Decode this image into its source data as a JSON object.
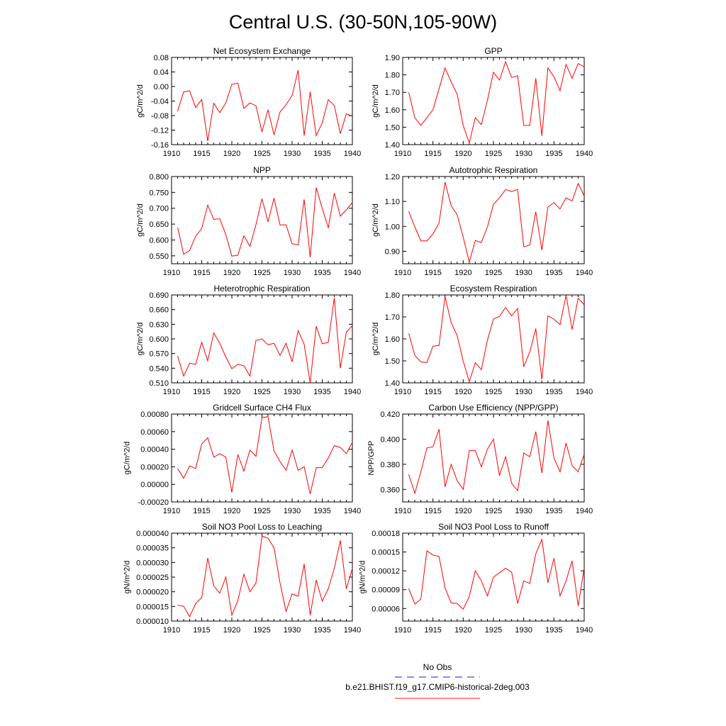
{
  "figure": {
    "title": "Central U.S. (30-50N,105-90W)",
    "legend": [
      {
        "label": "No Obs",
        "color": "#4040ff",
        "dash": true
      },
      {
        "label": "b.e21.BHIST.f19_g17.CMIP6-historical-2deg.003",
        "color": "#ff4040",
        "dash": false
      }
    ]
  },
  "chart_data": [
    {
      "type": "line",
      "title": "Net Ecosystem Exchange",
      "ylabel": "gC/m^2/d",
      "xlim": [
        1910,
        1940
      ],
      "xticks": [
        "1910",
        "1915",
        "1920",
        "1925",
        "1930",
        "1935",
        "1940"
      ],
      "ylim": [
        -0.16,
        0.08
      ],
      "yticks": [
        "-0.16",
        "-0.12",
        "-0.08",
        "-0.04",
        "0.00",
        "0.04",
        "0.08"
      ],
      "series": [
        {
          "color": "#ff0000",
          "x": [
            1911,
            1912,
            1913,
            1914,
            1915,
            1916,
            1917,
            1918,
            1919,
            1920,
            1921,
            1922,
            1923,
            1924,
            1925,
            1926,
            1927,
            1928,
            1929,
            1930,
            1931,
            1932,
            1933,
            1934,
            1935,
            1936,
            1937,
            1938,
            1939,
            1940
          ],
          "y": [
            -0.068,
            -0.015,
            -0.012,
            -0.058,
            -0.036,
            -0.15,
            -0.046,
            -0.072,
            -0.045,
            0.006,
            0.009,
            -0.06,
            -0.045,
            -0.053,
            -0.125,
            -0.064,
            -0.133,
            -0.07,
            -0.05,
            -0.025,
            0.045,
            -0.135,
            -0.015,
            -0.135,
            -0.1,
            -0.036,
            -0.052,
            -0.13,
            -0.075,
            -0.082
          ]
        }
      ]
    },
    {
      "type": "line",
      "title": "GPP",
      "ylabel": "gC/m^2/d",
      "xlim": [
        1910,
        1940
      ],
      "xticks": [
        "1910",
        "1915",
        "1920",
        "1925",
        "1930",
        "1935",
        "1940"
      ],
      "ylim": [
        1.4,
        1.9
      ],
      "yticks": [
        "1.40",
        "1.50",
        "1.60",
        "1.70",
        "1.80",
        "1.90"
      ],
      "series": [
        {
          "color": "#ff0000",
          "x": [
            1911,
            1912,
            1913,
            1914,
            1915,
            1916,
            1917,
            1918,
            1919,
            1920,
            1921,
            1922,
            1923,
            1924,
            1925,
            1926,
            1927,
            1928,
            1929,
            1930,
            1931,
            1932,
            1933,
            1934,
            1935,
            1936,
            1937,
            1938,
            1939,
            1940
          ],
          "y": [
            1.7,
            1.555,
            1.51,
            1.555,
            1.6,
            1.72,
            1.84,
            1.76,
            1.69,
            1.51,
            1.41,
            1.555,
            1.515,
            1.655,
            1.815,
            1.77,
            1.875,
            1.785,
            1.795,
            1.51,
            1.51,
            1.78,
            1.45,
            1.84,
            1.79,
            1.71,
            1.86,
            1.78,
            1.865,
            1.845
          ]
        }
      ]
    },
    {
      "type": "line",
      "title": "NPP",
      "ylabel": "gC/m^2/d",
      "xlim": [
        1910,
        1940
      ],
      "xticks": [
        "1910",
        "1915",
        "1920",
        "1925",
        "1930",
        "1935",
        "1940"
      ],
      "ylim": [
        0.525,
        0.8
      ],
      "yticks": [
        "0.550",
        "0.600",
        "0.650",
        "0.700",
        "0.750",
        "0.800"
      ],
      "series": [
        {
          "color": "#ff0000",
          "x": [
            1911,
            1912,
            1913,
            1914,
            1915,
            1916,
            1917,
            1918,
            1919,
            1920,
            1921,
            1922,
            1923,
            1924,
            1925,
            1926,
            1927,
            1928,
            1929,
            1930,
            1931,
            1932,
            1933,
            1934,
            1935,
            1936,
            1937,
            1938,
            1939,
            1940
          ],
          "y": [
            0.64,
            0.555,
            0.567,
            0.612,
            0.636,
            0.71,
            0.665,
            0.667,
            0.617,
            0.549,
            0.552,
            0.613,
            0.58,
            0.648,
            0.73,
            0.657,
            0.732,
            0.647,
            0.648,
            0.588,
            0.585,
            0.728,
            0.545,
            0.765,
            0.7,
            0.638,
            0.748,
            0.675,
            0.695,
            0.718
          ]
        }
      ]
    },
    {
      "type": "line",
      "title": "Autotrophic Respiration",
      "ylabel": "gC/m^2/d",
      "xlim": [
        1910,
        1940
      ],
      "xticks": [
        "1910",
        "1915",
        "1920",
        "1925",
        "1930",
        "1935",
        "1940"
      ],
      "ylim": [
        0.85,
        1.2
      ],
      "yticks": [
        "0.90",
        "1.00",
        "1.10",
        "1.20"
      ],
      "series": [
        {
          "color": "#ff0000",
          "x": [
            1911,
            1912,
            1913,
            1914,
            1915,
            1916,
            1917,
            1918,
            1919,
            1920,
            1921,
            1922,
            1923,
            1924,
            1925,
            1926,
            1927,
            1928,
            1929,
            1930,
            1931,
            1932,
            1933,
            1934,
            1935,
            1936,
            1937,
            1938,
            1939,
            1940
          ],
          "y": [
            1.06,
            0.998,
            0.942,
            0.942,
            0.97,
            1.013,
            1.178,
            1.083,
            1.047,
            0.957,
            0.857,
            0.943,
            0.935,
            0.998,
            1.088,
            1.115,
            1.148,
            1.14,
            1.148,
            0.918,
            0.925,
            1.058,
            0.905,
            1.078,
            1.095,
            1.07,
            1.115,
            1.102,
            1.172,
            1.122
          ]
        }
      ]
    },
    {
      "type": "line",
      "title": "Heterotrophic Respiration",
      "ylabel": "gC/m^2/d",
      "xlim": [
        1910,
        1940
      ],
      "xticks": [
        "1910",
        "1915",
        "1920",
        "1925",
        "1930",
        "1935",
        "1940"
      ],
      "ylim": [
        0.51,
        0.69
      ],
      "yticks": [
        "0.510",
        "0.540",
        "0.570",
        "0.600",
        "0.630",
        "0.660",
        "0.690"
      ],
      "series": [
        {
          "color": "#ff0000",
          "x": [
            1911,
            1912,
            1913,
            1914,
            1915,
            1916,
            1917,
            1918,
            1919,
            1920,
            1921,
            1922,
            1923,
            1924,
            1925,
            1926,
            1927,
            1928,
            1929,
            1930,
            1931,
            1932,
            1933,
            1934,
            1935,
            1936,
            1937,
            1938,
            1939,
            1940
          ],
          "y": [
            0.565,
            0.524,
            0.55,
            0.548,
            0.593,
            0.555,
            0.612,
            0.591,
            0.563,
            0.539,
            0.548,
            0.545,
            0.524,
            0.597,
            0.6,
            0.588,
            0.591,
            0.566,
            0.591,
            0.553,
            0.617,
            0.589,
            0.51,
            0.626,
            0.59,
            0.593,
            0.684,
            0.54,
            0.614,
            0.627
          ]
        }
      ]
    },
    {
      "type": "line",
      "title": "Ecosystem Respiration",
      "ylabel": "gC/m^2/d",
      "xlim": [
        1910,
        1940
      ],
      "xticks": [
        "1910",
        "1915",
        "1920",
        "1925",
        "1930",
        "1935",
        "1940"
      ],
      "ylim": [
        1.4,
        1.8
      ],
      "yticks": [
        "1.40",
        "1.50",
        "1.60",
        "1.70",
        "1.80"
      ],
      "series": [
        {
          "color": "#ff0000",
          "x": [
            1911,
            1912,
            1913,
            1914,
            1915,
            1916,
            1917,
            1918,
            1919,
            1920,
            1921,
            1922,
            1923,
            1924,
            1925,
            1926,
            1927,
            1928,
            1929,
            1930,
            1931,
            1932,
            1933,
            1934,
            1935,
            1936,
            1937,
            1938,
            1939,
            1940
          ],
          "y": [
            1.625,
            1.525,
            1.495,
            1.493,
            1.567,
            1.57,
            1.793,
            1.675,
            1.615,
            1.5,
            1.405,
            1.492,
            1.46,
            1.595,
            1.69,
            1.703,
            1.743,
            1.705,
            1.738,
            1.473,
            1.54,
            1.647,
            1.415,
            1.705,
            1.69,
            1.665,
            1.798,
            1.643,
            1.785,
            1.755
          ]
        }
      ]
    },
    {
      "type": "line",
      "title": "Gridcell Surface CH4 Flux",
      "ylabel": "gC/m^2/d",
      "xlim": [
        1910,
        1940
      ],
      "xticks": [
        "1910",
        "1915",
        "1920",
        "1925",
        "1930",
        "1935",
        "1940"
      ],
      "ylim": [
        -0.0002,
        0.0008
      ],
      "yticks": [
        "-0.00020",
        "0.00000",
        "0.00020",
        "0.00040",
        "0.00060",
        "0.00080"
      ],
      "series": [
        {
          "color": "#ff0000",
          "x": [
            1911,
            1912,
            1913,
            1914,
            1915,
            1916,
            1917,
            1918,
            1919,
            1920,
            1921,
            1922,
            1923,
            1924,
            1925,
            1926,
            1927,
            1928,
            1929,
            1930,
            1931,
            1932,
            1933,
            1934,
            1935,
            1936,
            1937,
            1938,
            1939,
            1940
          ],
          "y": [
            0.00018,
            7e-05,
            0.00021,
            0.00018,
            0.00046,
            0.00053,
            0.00031,
            0.00035,
            0.00031,
            -9e-05,
            0.00034,
            0.00015,
            0.00039,
            0.00032,
            0.00076,
            0.00077,
            0.00038,
            0.00026,
            0.00016,
            0.00039,
            0.00016,
            0.0002,
            -0.00011,
            0.00019,
            0.00019,
            0.0003,
            0.00044,
            0.00042,
            0.00035,
            0.00048
          ]
        }
      ]
    },
    {
      "type": "line",
      "title": "Carbon Use Efficiency (NPP/GPP)",
      "ylabel": "NPP/GPP",
      "xlim": [
        1910,
        1940
      ],
      "xticks": [
        "1910",
        "1915",
        "1920",
        "1925",
        "1930",
        "1935",
        "1940"
      ],
      "ylim": [
        0.35,
        0.42
      ],
      "yticks": [
        "0.360",
        "0.380",
        "0.400",
        "0.420"
      ],
      "series": [
        {
          "color": "#ff0000",
          "x": [
            1911,
            1912,
            1913,
            1914,
            1915,
            1916,
            1917,
            1918,
            1919,
            1920,
            1921,
            1922,
            1923,
            1924,
            1925,
            1926,
            1927,
            1928,
            1929,
            1930,
            1931,
            1932,
            1933,
            1934,
            1935,
            1936,
            1937,
            1938,
            1939,
            1940
          ],
          "y": [
            0.372,
            0.357,
            0.374,
            0.393,
            0.394,
            0.408,
            0.362,
            0.38,
            0.367,
            0.36,
            0.391,
            0.391,
            0.378,
            0.392,
            0.4,
            0.371,
            0.386,
            0.365,
            0.359,
            0.389,
            0.386,
            0.406,
            0.373,
            0.415,
            0.385,
            0.374,
            0.397,
            0.379,
            0.374,
            0.388
          ]
        }
      ]
    },
    {
      "type": "line",
      "title": "Soil NO3 Pool Loss to Leaching",
      "ylabel": "gN/m^2/d",
      "xlim": [
        1910,
        1940
      ],
      "xticks": [
        "1910",
        "1915",
        "1920",
        "1925",
        "1930",
        "1935",
        "1940"
      ],
      "ylim": [
        1e-05,
        4e-05
      ],
      "yticks": [
        "0.000010",
        "0.000015",
        "0.000020",
        "0.000025",
        "0.000030",
        "0.000035",
        "0.000040"
      ],
      "series": [
        {
          "color": "#ff0000",
          "x": [
            1911,
            1912,
            1913,
            1914,
            1915,
            1916,
            1917,
            1918,
            1919,
            1920,
            1921,
            1922,
            1923,
            1924,
            1925,
            1926,
            1927,
            1928,
            1929,
            1930,
            1931,
            1932,
            1933,
            1934,
            1935,
            1936,
            1937,
            1938,
            1939,
            1940
          ],
          "y": [
            1.55e-05,
            1.5e-05,
            1.15e-05,
            1.6e-05,
            1.8e-05,
            3.15e-05,
            2.2e-05,
            1.95e-05,
            2.5e-05,
            1.2e-05,
            1.7e-05,
            2.6e-05,
            2e-05,
            2.3e-05,
            3.9e-05,
            3.83e-05,
            3.5e-05,
            2.3e-05,
            1.33e-05,
            1.93e-05,
            1.85e-05,
            2.95e-05,
            1.2e-05,
            2.4e-05,
            1.68e-05,
            2.1e-05,
            2.8e-05,
            3.75e-05,
            2.1e-05,
            2.8e-05
          ]
        }
      ]
    },
    {
      "type": "line",
      "title": "Soil NO3 Pool Loss to Runoff",
      "ylabel": "gN/m^2/d",
      "xlim": [
        1910,
        1940
      ],
      "xticks": [
        "1910",
        "1915",
        "1920",
        "1925",
        "1930",
        "1935",
        "1940"
      ],
      "ylim": [
        4e-05,
        0.00018
      ],
      "yticks": [
        "0.00006",
        "0.00009",
        "0.00012",
        "0.00015",
        "0.00018"
      ],
      "series": [
        {
          "color": "#ff0000",
          "x": [
            1911,
            1912,
            1913,
            1914,
            1915,
            1916,
            1917,
            1918,
            1919,
            1920,
            1921,
            1922,
            1923,
            1924,
            1925,
            1926,
            1927,
            1928,
            1929,
            1930,
            1931,
            1932,
            1933,
            1934,
            1935,
            1936,
            1937,
            1938,
            1939,
            1940
          ],
          "y": [
            9.2e-05,
            6.7e-05,
            7.5e-05,
            0.000152,
            0.000145,
            0.000143,
            9.3e-05,
            6.9e-05,
            6.8e-05,
            5.9e-05,
            7.9e-05,
            0.00012,
            0.000104,
            8e-05,
            0.00011,
            0.000117,
            0.000124,
            0.000118,
            6.8e-05,
            0.000104,
            0.0001,
            0.000147,
            0.00017,
            0.000101,
            0.00014,
            8e-05,
            0.000104,
            0.000136,
            6.4e-05,
            0.000125
          ]
        }
      ]
    }
  ]
}
